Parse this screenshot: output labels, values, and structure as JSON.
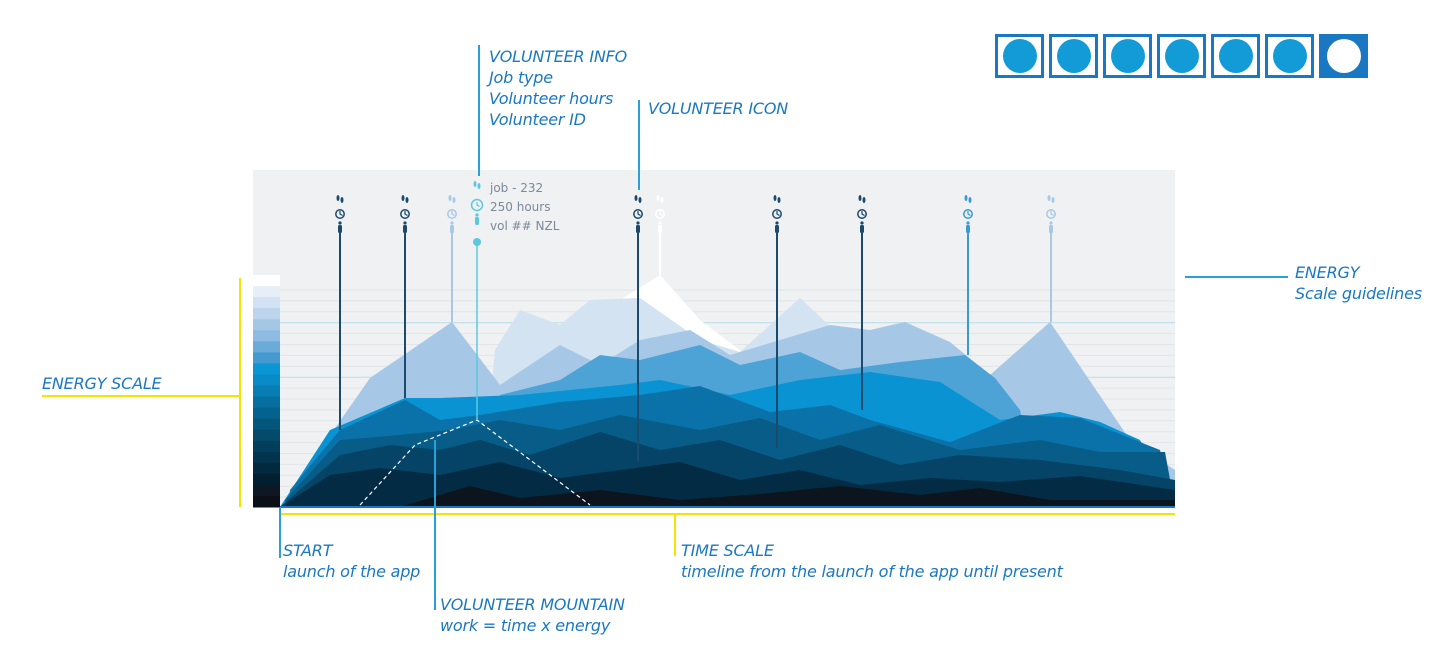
{
  "annotations": {
    "volunteer_info": {
      "title": "VOLUNTEER INFO",
      "lines": [
        "Job type",
        "Volunteer hours",
        "Volunteer ID"
      ]
    },
    "volunteer_icon": {
      "title": "VOLUNTEER ICON"
    },
    "energy": {
      "title": "ENERGY",
      "subtitle": "Scale guidelines"
    },
    "energy_scale": {
      "title": "ENERGY SCALE"
    },
    "start": {
      "title": "START",
      "subtitle": "launch of the app"
    },
    "time_scale": {
      "title": "TIME SCALE",
      "subtitle": "timeline from the launch of the app until present"
    },
    "volunteer_mountain": {
      "title": "VOLUNTEER MOUNTAIN",
      "subtitle": "work = time x energy"
    }
  },
  "selected_volunteer": {
    "job": "job - 232",
    "hours": "250 hours",
    "id": "vol ## NZL"
  },
  "view_buttons": {
    "count": 7,
    "active_index": 6
  },
  "colors": {
    "accent": "#1a78c2",
    "highlight": "#5cc8e0",
    "guide_yellow": "#f2e600",
    "panel_bg": "#eff1f3"
  },
  "icons": [
    "footprints-icon",
    "clock-icon",
    "person-icon"
  ]
}
